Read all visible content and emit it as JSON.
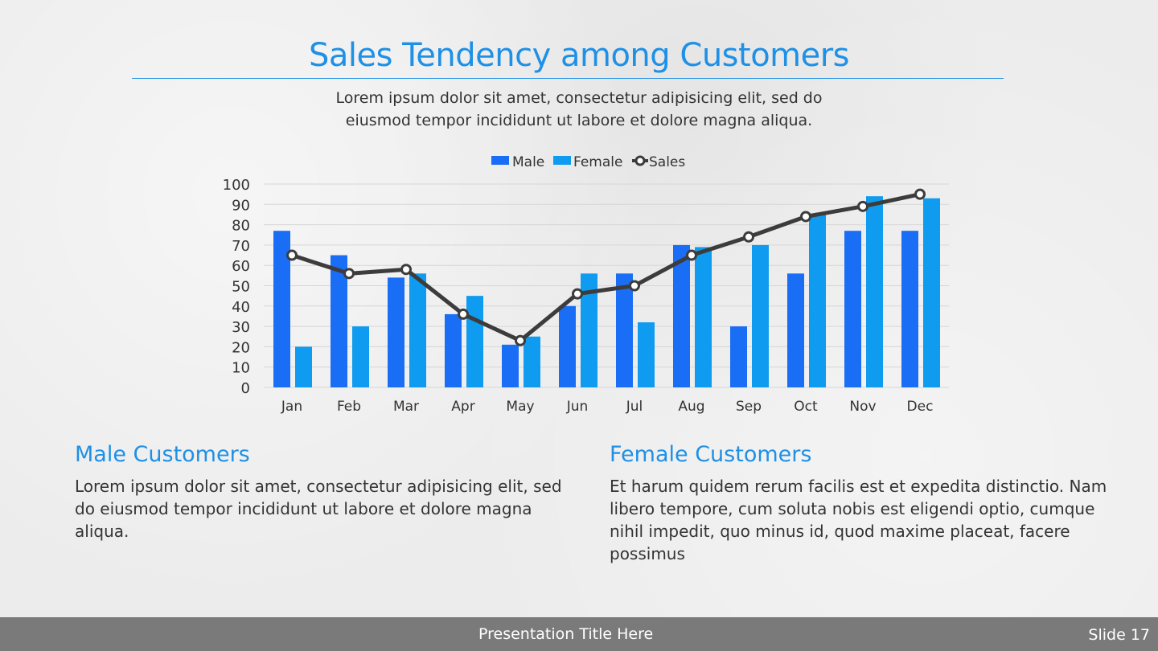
{
  "slide": {
    "title": "Sales Tendency among Customers",
    "subtitle_line1": "Lorem ipsum dolor sit amet, consectetur adipisicing elit, sed do",
    "subtitle_line2": "eiusmod tempor incididunt ut labore et dolore magna aliqua."
  },
  "sections": {
    "male": {
      "title": "Male Customers",
      "body": "Lorem ipsum dolor sit amet, consectetur adipisicing elit, sed do eiusmod tempor incididunt ut labore et dolore magna aliqua."
    },
    "female": {
      "title": "Female Customers",
      "body": "Et harum quidem rerum facilis est et expedita distinctio. Nam libero tempore, cum soluta nobis est eligendi optio, cumque nihil impedit, quo minus id, quod maxime placeat, facere possimus"
    }
  },
  "footer": {
    "title": "Presentation Title Here",
    "slide_label": "Slide 17"
  },
  "colors": {
    "accent": "#1e90e6",
    "male": "#1a6ef5",
    "female": "#0f9bf0",
    "sales": "#3c3c3c"
  },
  "chart_data": {
    "type": "bar",
    "categories": [
      "Jan",
      "Feb",
      "Mar",
      "Apr",
      "May",
      "Jun",
      "Jul",
      "Aug",
      "Sep",
      "Oct",
      "Nov",
      "Dec"
    ],
    "series": [
      {
        "name": "Male",
        "type": "bar",
        "values": [
          77,
          65,
          54,
          36,
          21,
          40,
          56,
          70,
          30,
          56,
          77,
          77
        ]
      },
      {
        "name": "Female",
        "type": "bar",
        "values": [
          20,
          30,
          56,
          45,
          25,
          56,
          32,
          69,
          70,
          85,
          94,
          93
        ]
      },
      {
        "name": "Sales",
        "type": "line",
        "values": [
          65,
          56,
          58,
          36,
          23,
          46,
          50,
          65,
          74,
          84,
          89,
          95
        ]
      }
    ],
    "ylim": [
      0,
      100
    ],
    "yticks": [
      "100",
      "90",
      "80",
      "70",
      "60",
      "50",
      "40",
      "30",
      "20",
      "10",
      "0"
    ],
    "legend_position": "top-center",
    "grid": true
  }
}
